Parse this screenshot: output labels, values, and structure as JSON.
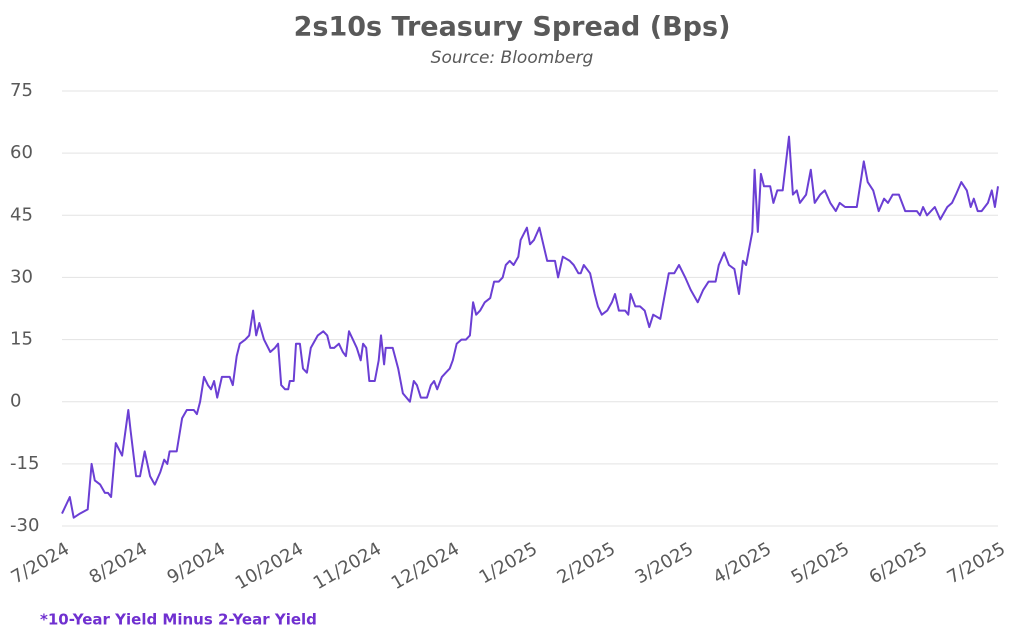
{
  "chart_data": {
    "type": "line",
    "title": "2s10s Treasury Spread (Bps)",
    "subtitle": "Source: Bloomberg",
    "footnote": "*10-Year Yield Minus 2-Year Yield",
    "color": "#6b3fd4",
    "grid": true,
    "xlim": [
      0,
      12
    ],
    "xticks": [
      {
        "value": 0,
        "label": "7/2024"
      },
      {
        "value": 1,
        "label": "8/2024"
      },
      {
        "value": 2,
        "label": "9/2024"
      },
      {
        "value": 3,
        "label": "10/2024"
      },
      {
        "value": 4,
        "label": "11/2024"
      },
      {
        "value": 5,
        "label": "12/2024"
      },
      {
        "value": 6,
        "label": "1/2025"
      },
      {
        "value": 7,
        "label": "2/2025"
      },
      {
        "value": 8,
        "label": "3/2025"
      },
      {
        "value": 9,
        "label": "4/2025"
      },
      {
        "value": 10,
        "label": "5/2025"
      },
      {
        "value": 11,
        "label": "6/2025"
      },
      {
        "value": 12,
        "label": "7/2025"
      }
    ],
    "ylim": [
      -30,
      75
    ],
    "yticks": [
      -30,
      -15,
      0,
      15,
      30,
      45,
      60,
      75
    ],
    "x": [
      0,
      0.1,
      0.15,
      0.23,
      0.33,
      0.38,
      0.42,
      0.49,
      0.55,
      0.59,
      0.63,
      0.69,
      0.77,
      0.85,
      0.88,
      0.95,
      1.0,
      1.06,
      1.13,
      1.19,
      1.26,
      1.31,
      1.35,
      1.38,
      1.47,
      1.54,
      1.6,
      1.69,
      1.73,
      1.77,
      1.82,
      1.87,
      1.91,
      1.95,
      1.99,
      2.05,
      2.15,
      2.19,
      2.24,
      2.28,
      2.35,
      2.4,
      2.45,
      2.49,
      2.53,
      2.59,
      2.67,
      2.73,
      2.77,
      2.81,
      2.86,
      2.9,
      2.92,
      2.97,
      3.0,
      3.05,
      3.09,
      3.14,
      3.19,
      3.28,
      3.35,
      3.4,
      3.44,
      3.49,
      3.55,
      3.6,
      3.64,
      3.68,
      3.73,
      3.78,
      3.83,
      3.86,
      3.9,
      3.94,
      4.01,
      4.06,
      4.09,
      4.13,
      4.15,
      4.24,
      4.31,
      4.37,
      4.46,
      4.51,
      4.55,
      4.6,
      4.68,
      4.73,
      4.77,
      4.81,
      4.87,
      4.92,
      4.97,
      5.01,
      5.06,
      5.12,
      5.18,
      5.23,
      5.27,
      5.31,
      5.36,
      5.42,
      5.49,
      5.54,
      5.6,
      5.65,
      5.69,
      5.74,
      5.79,
      5.85,
      5.88,
      5.96,
      6.0,
      6.05,
      6.12,
      6.17,
      6.22,
      6.32,
      6.36,
      6.42,
      6.51,
      6.56,
      6.62,
      6.65,
      6.69,
      6.77,
      6.83,
      6.87,
      6.92,
      6.99,
      7.05,
      7.09,
      7.14,
      7.22,
      7.26,
      7.29,
      7.35,
      7.41,
      7.47,
      7.53,
      7.58,
      7.67,
      7.73,
      7.78,
      7.85,
      7.91,
      7.99,
      8.06,
      8.15,
      8.22,
      8.29,
      8.38,
      8.42,
      8.49,
      8.55,
      8.62,
      8.68,
      8.73,
      8.77,
      8.85,
      8.88,
      8.92,
      8.96,
      9.0,
      9.08,
      9.12,
      9.17,
      9.24,
      9.32,
      9.37,
      9.42,
      9.46,
      9.54,
      9.6,
      9.65,
      9.72,
      9.78,
      9.85,
      9.92,
      9.97,
      10.04,
      10.1,
      10.19,
      10.28,
      10.33,
      10.4,
      10.47,
      10.54,
      10.59,
      10.65,
      10.73,
      10.81,
      10.88,
      10.96,
      11.0,
      11.04,
      11.09,
      11.19,
      11.26,
      11.29,
      11.35,
      11.41,
      11.46,
      11.53,
      11.6,
      11.65,
      11.69,
      11.74,
      11.79,
      11.87,
      11.92,
      11.96,
      12.0
    ],
    "values": [
      -27,
      -23,
      -28,
      -27,
      -26,
      -15,
      -19,
      -20,
      -22,
      -22,
      -23,
      -10,
      -13,
      -2,
      -7,
      -18,
      -18,
      -12,
      -18,
      -20,
      -17,
      -14,
      -15,
      -12,
      -12,
      -4,
      -2,
      -2,
      -3,
      0,
      6,
      4,
      3,
      5,
      1,
      6,
      6,
      4,
      11,
      14,
      15,
      16,
      22,
      16,
      19,
      15,
      12,
      13,
      14,
      4,
      3,
      3,
      5,
      5,
      14,
      14,
      8,
      7,
      13,
      16,
      17,
      16,
      13,
      13,
      14,
      12,
      11,
      17,
      15,
      13,
      10,
      14,
      13,
      5,
      5,
      10,
      16,
      9,
      13,
      13,
      8,
      2,
      0,
      5,
      4,
      1,
      1,
      4,
      5,
      3,
      6,
      7,
      8,
      10,
      14,
      15,
      15,
      16,
      24,
      21,
      22,
      24,
      25,
      29,
      29,
      30,
      33,
      34,
      33,
      35,
      39,
      42,
      38,
      39,
      42,
      38,
      34,
      34,
      30,
      35,
      34,
      33,
      31,
      31,
      33,
      31,
      26,
      23,
      21,
      22,
      24,
      26,
      22,
      22,
      21,
      26,
      23,
      23,
      22,
      18,
      21,
      20,
      26,
      31,
      31,
      33,
      30,
      27,
      24,
      27,
      29,
      29,
      33,
      36,
      33,
      32,
      26,
      34,
      33,
      41,
      56,
      41,
      55,
      52,
      52,
      48,
      51,
      51,
      64,
      50,
      51,
      48,
      50,
      56,
      48,
      50,
      51,
      48,
      46,
      48,
      47,
      47,
      47,
      58,
      53,
      51,
      46,
      49,
      48,
      50,
      50,
      46,
      46,
      46,
      45,
      47,
      45,
      47,
      44,
      45,
      47,
      48,
      50,
      53,
      51,
      47,
      49,
      46,
      46,
      48,
      51,
      47,
      52
    ]
  }
}
